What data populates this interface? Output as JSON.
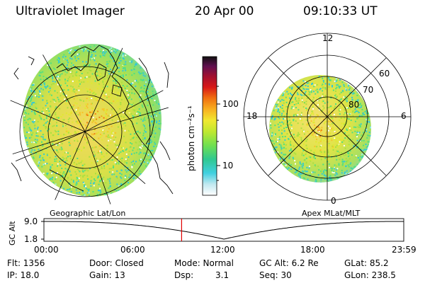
{
  "header": {
    "title": "Ultraviolet Imager",
    "date": "20 Apr 00",
    "time": "09:10:33 UT"
  },
  "geo_panel": {
    "label": "Geographic Lat/Lon"
  },
  "polar_panel": {
    "label": "Apex MLat/MLT",
    "mlt_labels": [
      "12",
      "18",
      "6",
      "0"
    ],
    "lat_labels": [
      "60",
      "70",
      "80"
    ]
  },
  "colorbar": {
    "unit_label": "photon cm⁻²s⁻¹",
    "ticks": [
      "100",
      "10"
    ],
    "colors": [
      "#e8eef2",
      "#a0f0f0",
      "#30c8d8",
      "#50e080",
      "#a8e040",
      "#e0e830",
      "#f8c028",
      "#f08010",
      "#d01010",
      "#901020",
      "#500840",
      "#101010"
    ]
  },
  "altitude_plot": {
    "ylabel": "GC Alt",
    "ymax_label": "9.0",
    "ymin_label": "1.8",
    "x_labels": [
      "00:00",
      "06:00",
      "12:00",
      "18:00",
      "23:59"
    ],
    "marker_hour": 9.18
  },
  "status": {
    "flt": "Flt: 1356",
    "ip": "IP: 18.0",
    "door": "Door: Closed",
    "gain": "Gain: 13",
    "mode": "Mode: Normal",
    "dsp_label": "Dsp:",
    "dsp_value": "3.1",
    "gc_alt": "GC Alt: 6.2 Re",
    "seq": "Seq: 30",
    "glat": "GLat: 85.2",
    "glon": "GLon: 238.5"
  }
}
